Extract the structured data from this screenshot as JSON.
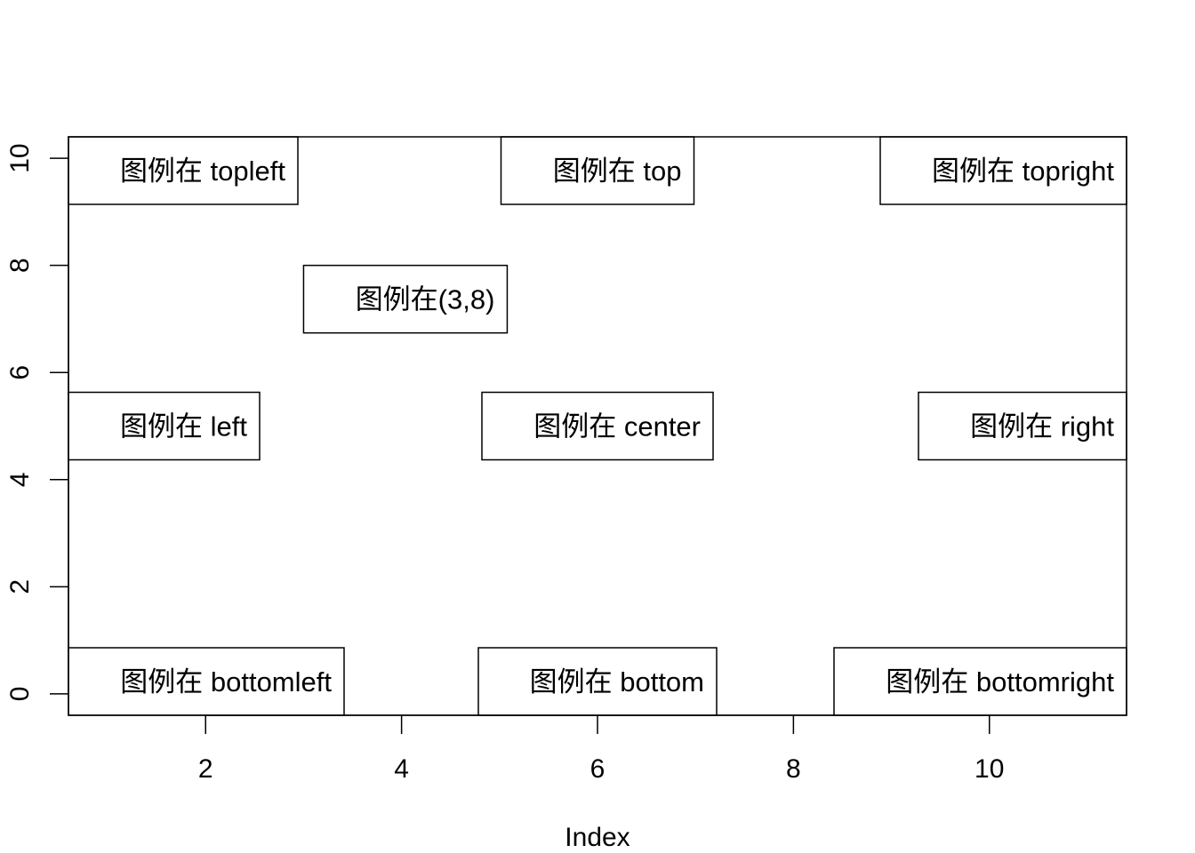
{
  "chart_data": {
    "type": "scatter",
    "title": "",
    "xlabel": "Index",
    "ylabel": "",
    "xlim": [
      0.6,
      11.4
    ],
    "ylim": [
      -0.4,
      10.4
    ],
    "x_ticks": [
      2,
      4,
      6,
      8,
      10
    ],
    "y_ticks": [
      0,
      2,
      4,
      6,
      8,
      10
    ],
    "x_tick_labels": [
      "2",
      "4",
      "6",
      "8",
      "10"
    ],
    "y_tick_labels": [
      "0",
      "2",
      "4",
      "6",
      "8",
      "10"
    ],
    "series": [],
    "legends": [
      {
        "label": "图例在 topleft",
        "position": "topleft"
      },
      {
        "label": "图例在 top",
        "position": "top"
      },
      {
        "label": "图例在 topright",
        "position": "topright"
      },
      {
        "label": "图例在(3,8)",
        "position": "xy",
        "x": 3,
        "y": 8
      },
      {
        "label": "图例在 left",
        "position": "left"
      },
      {
        "label": "图例在 center",
        "position": "center"
      },
      {
        "label": "图例在 right",
        "position": "right"
      },
      {
        "label": "图例在 bottomleft",
        "position": "bottomleft"
      },
      {
        "label": "图例在 bottom",
        "position": "bottom"
      },
      {
        "label": "图例在 bottomright",
        "position": "bottomright"
      }
    ],
    "grid": false
  }
}
